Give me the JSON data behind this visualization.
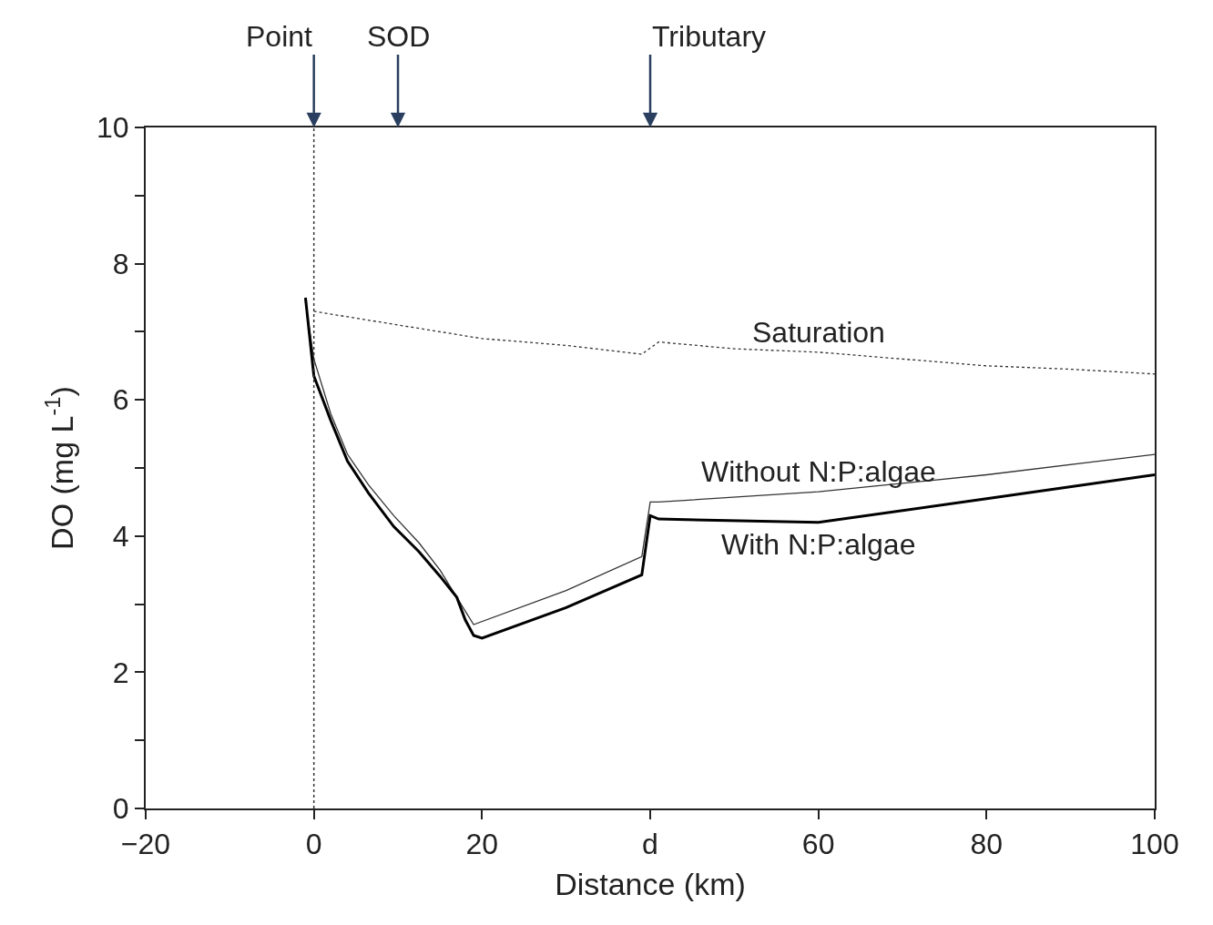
{
  "chart_data": {
    "type": "line",
    "xlabel": "Distance (km)",
    "ylabel": "DO (mg L$^{-1}$)",
    "xlim": [
      -20,
      100
    ],
    "ylim": [
      0,
      10
    ],
    "xticks": [
      -20,
      0,
      20,
      {
        "value": 40,
        "label": "d"
      },
      60,
      80,
      100
    ],
    "yticks": [
      0,
      {
        "value": 1,
        "label": null
      },
      2,
      {
        "value": 3,
        "label": null
      },
      4,
      {
        "value": 5,
        "label": null
      },
      6,
      {
        "value": 7,
        "label": null
      },
      8,
      {
        "value": 9,
        "label": null
      },
      10
    ],
    "legend": false,
    "series": [
      {
        "name": "Saturation",
        "color": "#333333",
        "line_style": "dotted",
        "x": [
          0,
          10,
          20,
          30,
          39,
          41,
          50,
          60,
          70,
          80,
          90,
          100
        ],
        "values": [
          7.3,
          7.1,
          6.9,
          6.8,
          6.67,
          6.85,
          6.75,
          6.7,
          6.6,
          6.5,
          6.45,
          6.38
        ]
      },
      {
        "name": "Without N:P:algae",
        "color": "#333333",
        "line_style": "solid",
        "x": [
          -1,
          0,
          2,
          4,
          6.5,
          9.5,
          12.5,
          15,
          18,
          19,
          30,
          39,
          40,
          41,
          60,
          80,
          100
        ],
        "values": [
          7.45,
          6.6,
          5.8,
          5.2,
          4.75,
          4.3,
          3.9,
          3.5,
          2.9,
          2.7,
          3.2,
          3.7,
          4.5,
          4.5,
          4.65,
          4.9,
          5.2
        ]
      },
      {
        "name": "With N:P:algae",
        "color": "#000000",
        "line_style": "solid",
        "x": [
          -1,
          0,
          2,
          4,
          6.5,
          9.5,
          12.5,
          15,
          17,
          18,
          19,
          20,
          30,
          39,
          40,
          41,
          60,
          80,
          100
        ],
        "values": [
          7.5,
          6.35,
          5.7,
          5.1,
          4.63,
          4.14,
          3.77,
          3.41,
          3.1,
          2.77,
          2.54,
          2.5,
          2.95,
          3.43,
          4.3,
          4.25,
          4.2,
          4.55,
          4.9
        ]
      }
    ],
    "ref_lines": [
      {
        "axis": "x",
        "value": 0,
        "line_style": "dotted",
        "color": "#333333",
        "label": "Point"
      }
    ],
    "annotations": [
      "SOD",
      "Tributary"
    ]
  }
}
